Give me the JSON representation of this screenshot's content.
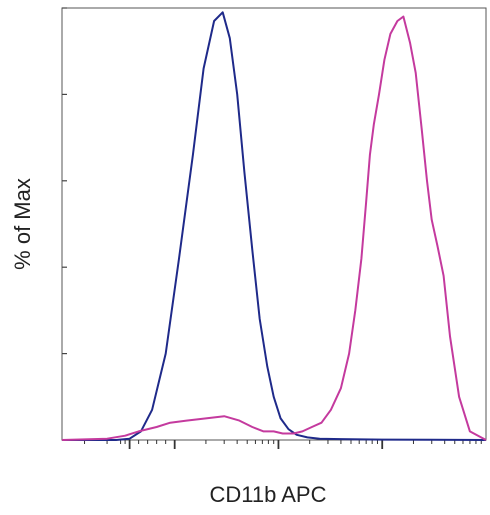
{
  "chart_data": {
    "type": "line",
    "title": "",
    "xlabel": "CD11b APC",
    "ylabel": "% of Max",
    "x_scale": "log",
    "xlim": [
      -300,
      100000
    ],
    "ylim": [
      0,
      100
    ],
    "grid": false,
    "legend": "none",
    "series": [
      {
        "color": "#1f2a8a",
        "x": [
          -300,
          -150,
          -60,
          0,
          25,
          50,
          80,
          110,
          150,
          190,
          240,
          290,
          340,
          400,
          470,
          560,
          660,
          780,
          900,
          1050,
          1250,
          1500,
          1900,
          2500,
          4000,
          10000,
          30000,
          100000
        ],
        "y": [
          0,
          0,
          0,
          0.3,
          2,
          7,
          20,
          42,
          66,
          86,
          97,
          99,
          93,
          80,
          62,
          44,
          28,
          17,
          10,
          5,
          2.5,
          1.2,
          0.6,
          0.3,
          0.2,
          0.1,
          0.05,
          0
        ]
      },
      {
        "color": "#c43a9e",
        "x": [
          -300,
          -100,
          -20,
          20,
          60,
          90,
          130,
          200,
          300,
          420,
          560,
          720,
          900,
          1100,
          1400,
          1700,
          2100,
          2600,
          3200,
          4000,
          4800,
          5500,
          6300,
          7000,
          7600,
          8300,
          9300,
          10500,
          12000,
          14000,
          16000,
          18500,
          21000,
          24000,
          27000,
          30000,
          34000,
          39000,
          45000,
          55000,
          70000,
          100000
        ],
        "y": [
          0,
          0.3,
          1,
          2,
          3,
          4,
          4.5,
          5,
          5.5,
          4.5,
          3,
          2,
          2,
          1.5,
          1.5,
          2,
          3,
          4,
          7,
          12,
          20,
          30,
          42,
          55,
          66,
          73,
          80,
          88,
          94,
          97,
          98,
          92,
          85,
          72,
          60,
          51,
          45,
          38,
          24,
          10,
          2,
          0
        ]
      }
    ]
  }
}
